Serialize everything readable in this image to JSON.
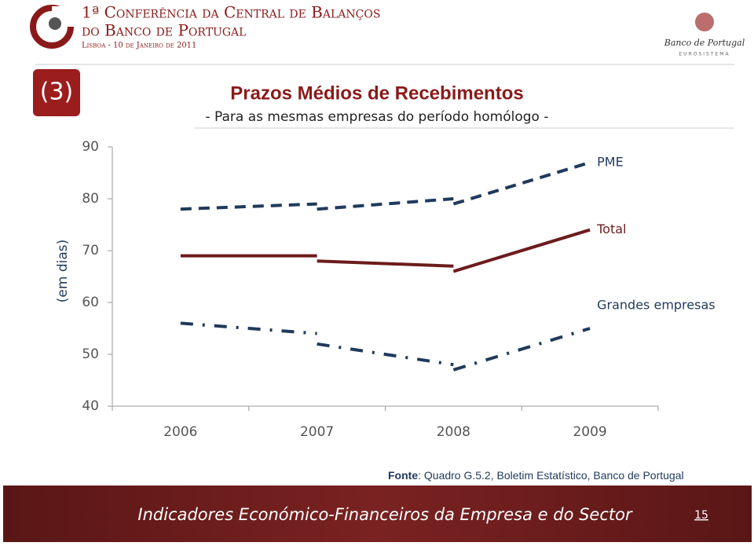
{
  "header": {
    "conference_lines": [
      "1ª Conferência da Central de Balanços",
      "do Banco de Portugal",
      "Lisboa - 10 de Janeiro de 2011"
    ],
    "bank_name": "Banco de Portugal",
    "bank_subtitle": "EUROSISTEMA",
    "section_number": "(3)"
  },
  "chart_data": {
    "type": "line",
    "title": "Prazos Médios de Recebimentos",
    "subtitle": "- Para as mesmas empresas do período homólogo -",
    "y_label": "(em dias)",
    "categories": [
      "2006",
      "2007",
      "2008",
      "2009"
    ],
    "series": [
      {
        "name": "PME",
        "color": "#1f3a5c",
        "dash": "dashed",
        "segments": [
          [
            78,
            79
          ],
          [
            78,
            80
          ],
          [
            79,
            87
          ]
        ]
      },
      {
        "name": "Total",
        "color": "#6b1c1c",
        "dash": "solid",
        "segments": [
          [
            69,
            69
          ],
          [
            68,
            67
          ],
          [
            66,
            74
          ]
        ]
      },
      {
        "name": "Grandes empresas",
        "color": "#1f3a5c",
        "dash": "dashdot",
        "segments": [
          [
            56,
            54
          ],
          [
            52,
            48
          ],
          [
            47,
            55
          ]
        ]
      }
    ],
    "ylim": [
      40,
      90
    ],
    "yticks": [
      40,
      50,
      60,
      70,
      80,
      90
    ],
    "grid": false
  },
  "source": {
    "label": "Fonte",
    "text": ": Quadro G.5.2, Boletim Estatístico, Banco de Portugal"
  },
  "footer": {
    "text": "Indicadores Económico-Financeiros da Empresa e do Sector",
    "page": "15"
  }
}
